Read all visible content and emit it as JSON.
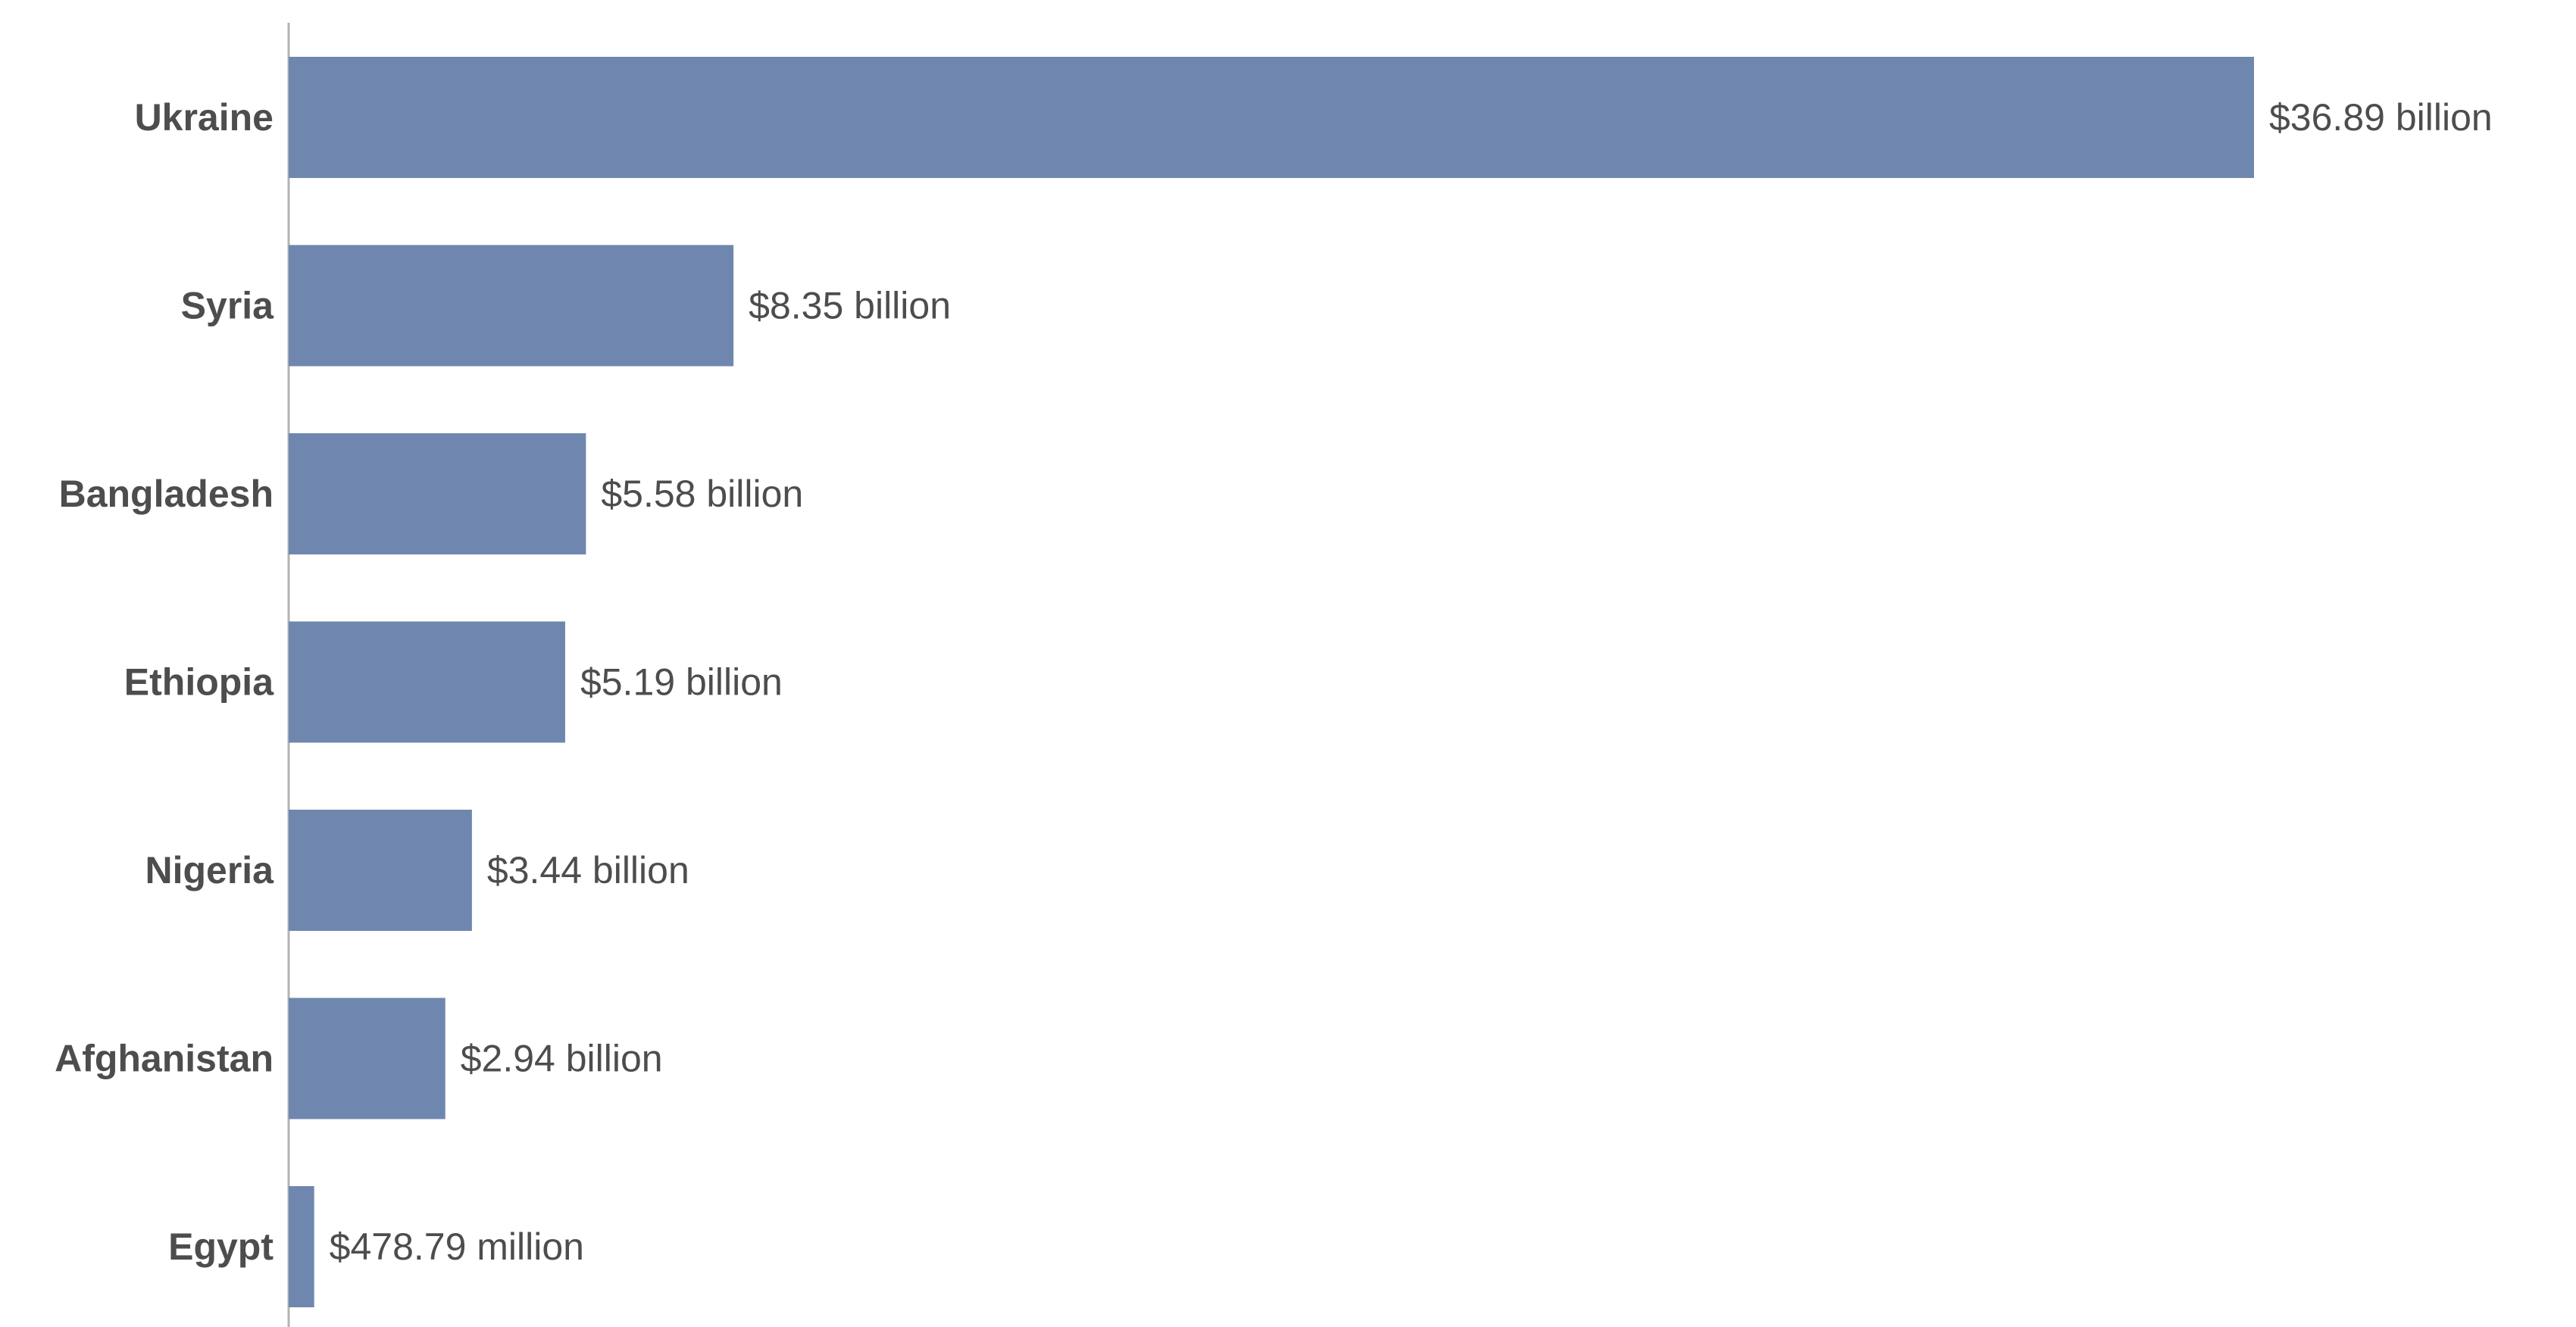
{
  "colors": {
    "bar": "#6f87ae",
    "axis": "#b3b3b3",
    "text": "#4d4d4d",
    "background": "#ffffff"
  },
  "chart_data": {
    "type": "bar",
    "orientation": "horizontal",
    "categories": [
      "Ukraine",
      "Syria",
      "Bangladesh",
      "Ethiopia",
      "Nigeria",
      "Afghanistan",
      "Egypt"
    ],
    "values": [
      36.89,
      8.35,
      5.58,
      5.19,
      3.44,
      2.94,
      0.47879
    ],
    "value_unit": "billion US dollars",
    "data_labels": [
      "$36.89 billion",
      "$8.35 billion",
      "$5.58 billion",
      "$5.19 billion",
      "$3.44 billion",
      "$2.94 billion",
      "$478.79 million"
    ],
    "title": "",
    "xlabel": "",
    "ylabel": "",
    "xlim": [
      0,
      36.89
    ],
    "grid": false,
    "legend": "none"
  }
}
